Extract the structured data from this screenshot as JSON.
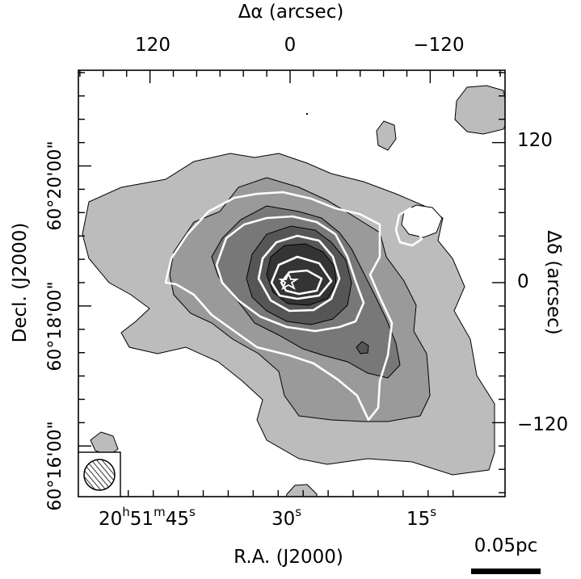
{
  "chart_data": {
    "type": "contour",
    "top_axis": {
      "label": "Δα (arcsec)",
      "ticks": [
        {
          "label": "120",
          "value": 120
        },
        {
          "label": "0",
          "value": 0
        },
        {
          "label": "−120",
          "value": -120
        }
      ]
    },
    "right_axis": {
      "label": "Δδ (arcsec)",
      "ticks": [
        {
          "label": "120",
          "value": 120
        },
        {
          "label": "0",
          "value": 0
        },
        {
          "label": "−120",
          "value": -120
        }
      ]
    },
    "left_axis": {
      "label": "Decl. (J2000)",
      "ticks": [
        {
          "label": "60°20'00\"",
          "deg": "60°",
          "arcmin": "20'",
          "arcsec": "00\"",
          "value_arcsec": 100
        },
        {
          "label": "60°18'00\"",
          "deg": "60°",
          "arcmin": "18'",
          "arcsec": "00\"",
          "value_arcsec": -20
        },
        {
          "label": "60°16'00\"",
          "deg": "60°",
          "arcmin": "16'",
          "arcsec": "00\"",
          "value_arcsec": -140
        }
      ]
    },
    "bottom_axis": {
      "label": "R.A. (J2000)",
      "ticks": [
        {
          "label": "20h51m45s",
          "hours": "20",
          "minutes": "51",
          "seconds": "45",
          "value_arcsec": 107
        },
        {
          "label": "30s",
          "seconds": "30",
          "value_arcsec": 0
        },
        {
          "label": "15s",
          "seconds": "15",
          "value_arcsec": -107
        }
      ]
    },
    "scale_bar": {
      "label": "0.05pc"
    },
    "marker": {
      "symbol": "star",
      "x": 0,
      "y": 0
    },
    "beam": {
      "shape": "circle",
      "fill": "hatched"
    },
    "colors": {
      "fill_levels": [
        "#bcbcbc",
        "#9a9a9a",
        "#787878",
        "#565656",
        "#343434"
      ],
      "white_contours": "#ffffff",
      "black_contours": "#000000"
    }
  }
}
